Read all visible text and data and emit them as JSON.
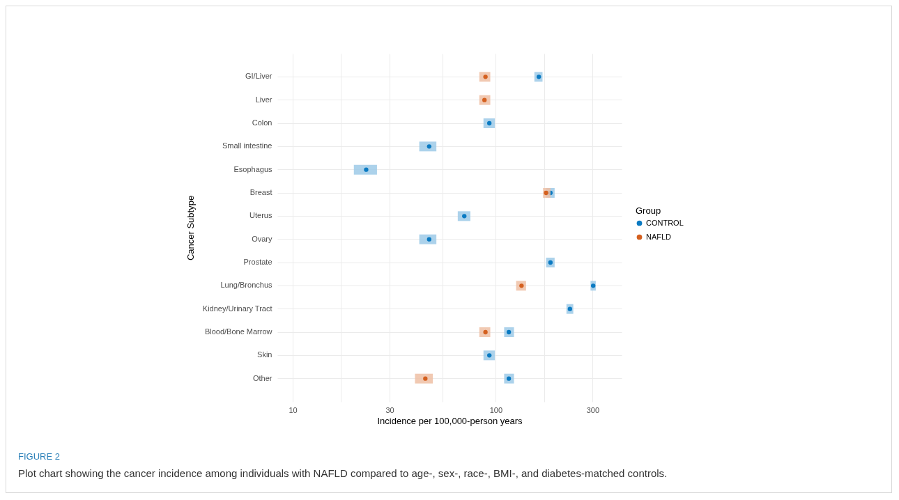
{
  "chart_data": {
    "type": "scatter",
    "orientation": "horizontal",
    "xlabel": "Incidence per 100,000-person years",
    "ylabel": "Cancer Subtype",
    "legend_title": "Group",
    "legend": "right",
    "grid": true,
    "log": "x",
    "marker": "circle",
    "categories": [
      "GI/Liver",
      "Liver",
      "Colon",
      "Small intestine",
      "Esophagus",
      "Breast",
      "Uterus",
      "Ovary",
      "Prostate",
      "Lung/Bronchus",
      "Kidney/Urinary Tract",
      "Blood/Bone Marrow",
      "Skin",
      "Other"
    ],
    "xlim": [
      8.4,
      417
    ],
    "xticks": [
      10,
      {
        "value": 17.3,
        "label": null
      },
      30,
      {
        "value": 54.8,
        "label": null
      },
      100,
      {
        "value": 173,
        "label": null
      },
      300
    ],
    "series": [
      {
        "name": "CONTROL",
        "color": "#0a7ac2",
        "values": [
          163,
          null,
          93,
          47,
          23,
          186,
          70,
          47,
          186,
          302,
          232,
          116,
          93,
          116
        ],
        "errors": [
          [
            155,
            170
          ],
          null,
          [
            87,
            99
          ],
          [
            42,
            51
          ],
          [
            20,
            26
          ],
          [
            177,
            195
          ],
          [
            65,
            75
          ],
          [
            42,
            51
          ],
          [
            177,
            195
          ],
          [
            293,
            311
          ],
          [
            223,
            241
          ],
          [
            110,
            123
          ],
          [
            87,
            99
          ],
          [
            110,
            123
          ]
        ]
      },
      {
        "name": "NAFLD",
        "color": "#d4601f",
        "values": [
          89,
          88,
          null,
          null,
          null,
          177,
          null,
          null,
          null,
          134,
          null,
          89,
          null,
          45
        ],
        "errors": [
          [
            83,
            94
          ],
          [
            83,
            94
          ],
          null,
          null,
          null,
          [
            171,
            186
          ],
          null,
          null,
          null,
          [
            126,
            141
          ],
          null,
          [
            83,
            94
          ],
          null,
          [
            40,
            49
          ]
        ]
      }
    ],
    "annotations": [
      "FIGURE 2",
      "Plot chart showing the cancer incidence among individuals with NAFLD compared to age-, sex-, race-, BMI-, and diabetes-matched controls."
    ]
  }
}
